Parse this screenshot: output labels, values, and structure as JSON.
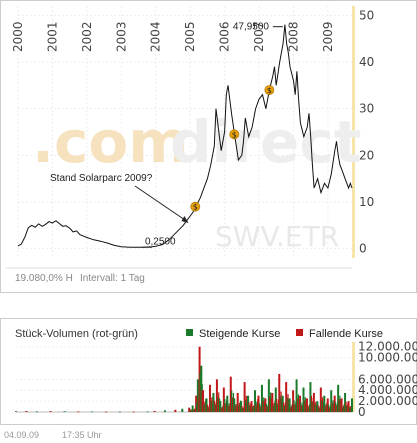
{
  "chart_data": [
    {
      "type": "line",
      "title": "",
      "x_ticks": [
        "2000",
        "2001",
        "2002",
        "2003",
        "2004",
        "2005",
        "2006",
        "2007",
        "2008",
        "2009"
      ],
      "y_ticks": [
        "0",
        "10",
        "20",
        "30",
        "40",
        "50"
      ],
      "ylim": [
        -2,
        52
      ],
      "xlim": [
        2000.0,
        2009.7
      ],
      "series": [
        {
          "values": [
            [
              2000.0,
              0.6
            ],
            [
              2000.1,
              1.0
            ],
            [
              2000.2,
              2.5
            ],
            [
              2000.3,
              4.5
            ],
            [
              2000.4,
              5.0
            ],
            [
              2000.5,
              4.6
            ],
            [
              2000.6,
              5.3
            ],
            [
              2000.7,
              4.8
            ],
            [
              2000.8,
              5.2
            ],
            [
              2000.9,
              5.8
            ],
            [
              2001.0,
              5.5
            ],
            [
              2001.1,
              6.0
            ],
            [
              2001.2,
              5.4
            ],
            [
              2001.3,
              4.8
            ],
            [
              2001.4,
              4.9
            ],
            [
              2001.5,
              4.4
            ],
            [
              2001.6,
              3.6
            ],
            [
              2001.7,
              3.8
            ],
            [
              2001.8,
              3.0
            ],
            [
              2001.9,
              2.7
            ],
            [
              2002.0,
              2.4
            ],
            [
              2002.2,
              1.9
            ],
            [
              2002.4,
              1.6
            ],
            [
              2002.6,
              1.2
            ],
            [
              2002.8,
              0.7
            ],
            [
              2003.0,
              0.4
            ],
            [
              2003.3,
              0.3
            ],
            [
              2003.6,
              0.3
            ],
            [
              2003.9,
              0.4
            ],
            [
              2004.0,
              0.5
            ],
            [
              2004.2,
              0.9
            ],
            [
              2004.4,
              2.0
            ],
            [
              2004.6,
              3.5
            ],
            [
              2004.8,
              5.0
            ],
            [
              2004.9,
              6.0
            ],
            [
              2005.0,
              7.0
            ],
            [
              2005.1,
              8.0
            ],
            [
              2005.2,
              9.5
            ],
            [
              2005.3,
              11.0
            ],
            [
              2005.4,
              13.0
            ],
            [
              2005.5,
              15.0
            ],
            [
              2005.6,
              18.0
            ],
            [
              2005.7,
              22.0
            ],
            [
              2005.75,
              30.0
            ],
            [
              2005.8,
              27.0
            ],
            [
              2005.85,
              24.0
            ],
            [
              2005.9,
              21.0
            ],
            [
              2006.0,
              25.0
            ],
            [
              2006.05,
              33.0
            ],
            [
              2006.1,
              35.0
            ],
            [
              2006.2,
              29.0
            ],
            [
              2006.3,
              24.0
            ],
            [
              2006.4,
              19.0
            ],
            [
              2006.5,
              20.0
            ],
            [
              2006.55,
              23.0
            ],
            [
              2006.6,
              28.0
            ],
            [
              2006.7,
              24.0
            ],
            [
              2006.8,
              26.0
            ],
            [
              2006.9,
              30.0
            ],
            [
              2007.0,
              32.0
            ],
            [
              2007.1,
              33.0
            ],
            [
              2007.2,
              30.0
            ],
            [
              2007.3,
              34.0
            ],
            [
              2007.4,
              37.0
            ],
            [
              2007.45,
              39.0
            ],
            [
              2007.5,
              35.0
            ],
            [
              2007.6,
              40.0
            ],
            [
              2007.7,
              44.0
            ],
            [
              2007.75,
              48.0
            ],
            [
              2007.8,
              44.0
            ],
            [
              2007.85,
              42.0
            ],
            [
              2007.9,
              39.0
            ],
            [
              2008.0,
              36.0
            ],
            [
              2008.05,
              33.0
            ],
            [
              2008.1,
              38.0
            ],
            [
              2008.15,
              32.0
            ],
            [
              2008.2,
              27.0
            ],
            [
              2008.3,
              24.0
            ],
            [
              2008.4,
              26.0
            ],
            [
              2008.45,
              29.0
            ],
            [
              2008.5,
              24.0
            ],
            [
              2008.55,
              18.0
            ],
            [
              2008.6,
              13.0
            ],
            [
              2008.7,
              15.0
            ],
            [
              2008.8,
              12.0
            ],
            [
              2008.9,
              14.0
            ],
            [
              2009.0,
              13.0
            ],
            [
              2009.1,
              16.0
            ],
            [
              2009.2,
              21.0
            ],
            [
              2009.25,
              23.0
            ],
            [
              2009.3,
              20.0
            ],
            [
              2009.35,
              18.0
            ],
            [
              2009.4,
              17.0
            ],
            [
              2009.5,
              15.0
            ],
            [
              2009.6,
              13.0
            ],
            [
              2009.65,
              14.0
            ],
            [
              2009.7,
              13.0
            ]
          ]
        }
      ],
      "annotations": [
        {
          "text": "47,9500",
          "x": 2007.75,
          "y": 48.0
        },
        {
          "text": "0,2500",
          "x": 2003.6,
          "y": 0.3
        },
        {
          "text": "Stand Solarparc 2009?",
          "x": 2004.95,
          "y": 5.5
        }
      ],
      "dividend_markers": [
        {
          "symbol": "$",
          "x": 2005.15,
          "y": 9.0
        },
        {
          "symbol": "$",
          "x": 2006.28,
          "y": 24.5
        },
        {
          "symbol": "$",
          "x": 2007.3,
          "y": 34.0
        }
      ],
      "watermark": {
        "left": ".com",
        "right": "direct",
        "ticker": "SWV.ETR"
      },
      "footer_left": "19.080,0% H",
      "footer_right": "Intervall: 1 Tag"
    },
    {
      "type": "bar",
      "title": "Stück-Volumen (rot-grün)",
      "legend": [
        {
          "name": "Steigende Kurse",
          "color": "#1a7a2a"
        },
        {
          "name": "Fallende Kurse",
          "color": "#c01818"
        }
      ],
      "y_ticks": [
        "0",
        "2.000.000",
        "4.000.000",
        "6.000.000",
        "10.000.000",
        "12.000.000"
      ],
      "tick_values": [
        0,
        2000000,
        4000000,
        6000000,
        10000000,
        12000000
      ],
      "ylim": [
        0,
        12500000
      ],
      "xlim": [
        2000.0,
        2009.7
      ],
      "bars": [
        [
          2000.0,
          150000
        ],
        [
          2000.3,
          180000
        ],
        [
          2000.6,
          120000
        ],
        [
          2001.0,
          160000
        ],
        [
          2001.4,
          140000
        ],
        [
          2001.8,
          110000
        ],
        [
          2002.2,
          100000
        ],
        [
          2002.6,
          90000
        ],
        [
          2003.0,
          80000
        ],
        [
          2003.4,
          90000
        ],
        [
          2003.8,
          100000
        ],
        [
          2004.0,
          200000
        ],
        [
          2004.3,
          300000
        ],
        [
          2004.6,
          400000
        ],
        [
          2004.8,
          600000
        ],
        [
          2005.0,
          800000
        ],
        [
          2005.1,
          1200000
        ],
        [
          2005.2,
          3000000
        ],
        [
          2005.25,
          6000000
        ],
        [
          2005.3,
          12000000
        ],
        [
          2005.35,
          8500000
        ],
        [
          2005.4,
          4000000
        ],
        [
          2005.5,
          2500000
        ],
        [
          2005.6,
          5000000
        ],
        [
          2005.7,
          3500000
        ],
        [
          2005.8,
          6000000
        ],
        [
          2005.9,
          2000000
        ],
        [
          2006.0,
          4500000
        ],
        [
          2006.1,
          3000000
        ],
        [
          2006.2,
          6500000
        ],
        [
          2006.3,
          2500000
        ],
        [
          2006.4,
          3500000
        ],
        [
          2006.5,
          2000000
        ],
        [
          2006.6,
          5500000
        ],
        [
          2006.7,
          3000000
        ],
        [
          2006.8,
          2000000
        ],
        [
          2006.9,
          4000000
        ],
        [
          2007.0,
          3000000
        ],
        [
          2007.1,
          5000000
        ],
        [
          2007.2,
          2500000
        ],
        [
          2007.3,
          6000000
        ],
        [
          2007.4,
          3500000
        ],
        [
          2007.5,
          4500000
        ],
        [
          2007.6,
          7000000
        ],
        [
          2007.7,
          3000000
        ],
        [
          2007.8,
          5500000
        ],
        [
          2007.9,
          2500000
        ],
        [
          2008.0,
          4000000
        ],
        [
          2008.1,
          6000000
        ],
        [
          2008.2,
          3000000
        ],
        [
          2008.3,
          4500000
        ],
        [
          2008.4,
          2500000
        ],
        [
          2008.5,
          5500000
        ],
        [
          2008.6,
          3500000
        ],
        [
          2008.7,
          2000000
        ],
        [
          2008.8,
          4500000
        ],
        [
          2008.9,
          3000000
        ],
        [
          2009.0,
          2500000
        ],
        [
          2009.1,
          4000000
        ],
        [
          2009.2,
          3000000
        ],
        [
          2009.3,
          5000000
        ],
        [
          2009.4,
          2500000
        ],
        [
          2009.5,
          3500000
        ],
        [
          2009.6,
          2000000
        ],
        [
          2009.7,
          2500000
        ]
      ],
      "footer_date": "04.09.09",
      "footer_time": "17:35 Uhr"
    }
  ]
}
